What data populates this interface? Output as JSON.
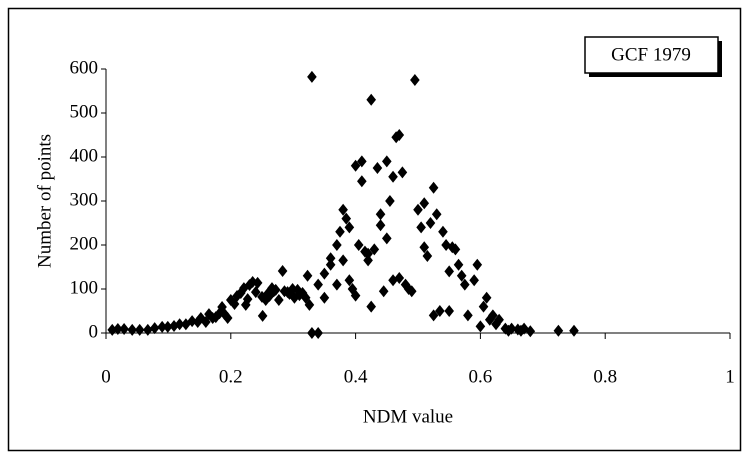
{
  "chart_data": {
    "type": "scatter",
    "x_label": "NDM value",
    "y_label": "Number of points",
    "xlim": [
      0,
      1
    ],
    "xticks": [
      0,
      0.2,
      0.4,
      0.6,
      0.8,
      1
    ],
    "ylim": [
      0,
      600
    ],
    "yticks": [
      0,
      100,
      200,
      300,
      400,
      500,
      600
    ],
    "grid": false,
    "legend": "top-right",
    "series": [
      {
        "name": "GCF 1979",
        "color": "#000000",
        "x": [
          0.01,
          0.019,
          0.029,
          0.042,
          0.054,
          0.067,
          0.078,
          0.09,
          0.099,
          0.109,
          0.118,
          0.128,
          0.138,
          0.147,
          0.152,
          0.16,
          0.165,
          0.171,
          0.176,
          0.182,
          0.186,
          0.19,
          0.195,
          0.2,
          0.206,
          0.21,
          0.216,
          0.221,
          0.224,
          0.227,
          0.23,
          0.235,
          0.24,
          0.243,
          0.25,
          0.251,
          0.256,
          0.259,
          0.262,
          0.266,
          0.269,
          0.272,
          0.277,
          0.283,
          0.286,
          0.291,
          0.294,
          0.299,
          0.302,
          0.307,
          0.31,
          0.315,
          0.32,
          0.323,
          0.326,
          0.33,
          0.33,
          0.34,
          0.34,
          0.35,
          0.35,
          0.36,
          0.36,
          0.37,
          0.37,
          0.375,
          0.38,
          0.38,
          0.385,
          0.39,
          0.39,
          0.395,
          0.4,
          0.4,
          0.405,
          0.41,
          0.41,
          0.415,
          0.42,
          0.42,
          0.425,
          0.425,
          0.43,
          0.435,
          0.44,
          0.44,
          0.445,
          0.45,
          0.45,
          0.455,
          0.46,
          0.46,
          0.465,
          0.47,
          0.47,
          0.475,
          0.48,
          0.485,
          0.49,
          0.495,
          0.5,
          0.505,
          0.51,
          0.51,
          0.515,
          0.52,
          0.525,
          0.525,
          0.53,
          0.535,
          0.54,
          0.545,
          0.55,
          0.55,
          0.555,
          0.56,
          0.565,
          0.57,
          0.575,
          0.58,
          0.59,
          0.595,
          0.6,
          0.605,
          0.61,
          0.615,
          0.62,
          0.625,
          0.63,
          0.64,
          0.645,
          0.65,
          0.66,
          0.665,
          0.67,
          0.68,
          0.725,
          0.75
        ],
        "values": [
          7,
          9,
          9,
          7,
          7,
          7,
          11,
          14,
          14,
          16,
          20,
          20,
          27,
          25,
          34,
          25,
          43,
          34,
          36,
          45,
          59,
          43,
          34,
          75,
          66,
          84,
          91,
          102,
          64,
          77,
          109,
          116,
          93,
          114,
          82,
          39,
          75,
          89,
          84,
          102,
          95,
          98,
          75,
          141,
          95,
          93,
          89,
          100,
          80,
          98,
          86,
          91,
          80,
          130,
          64,
          582,
          0,
          0,
          110,
          80,
          135,
          170,
          155,
          110,
          200,
          230,
          280,
          165,
          260,
          120,
          240,
          100,
          380,
          85,
          200,
          390,
          345,
          185,
          165,
          180,
          530,
          60,
          190,
          375,
          270,
          245,
          95,
          390,
          215,
          300,
          355,
          120,
          445,
          450,
          125,
          365,
          110,
          100,
          95,
          575,
          280,
          240,
          295,
          195,
          175,
          250,
          330,
          40,
          270,
          50,
          230,
          200,
          140,
          50,
          195,
          190,
          155,
          130,
          110,
          40,
          120,
          155,
          15,
          60,
          80,
          30,
          40,
          20,
          30,
          10,
          5,
          10,
          8,
          5,
          10,
          4,
          5,
          5
        ]
      }
    ]
  }
}
